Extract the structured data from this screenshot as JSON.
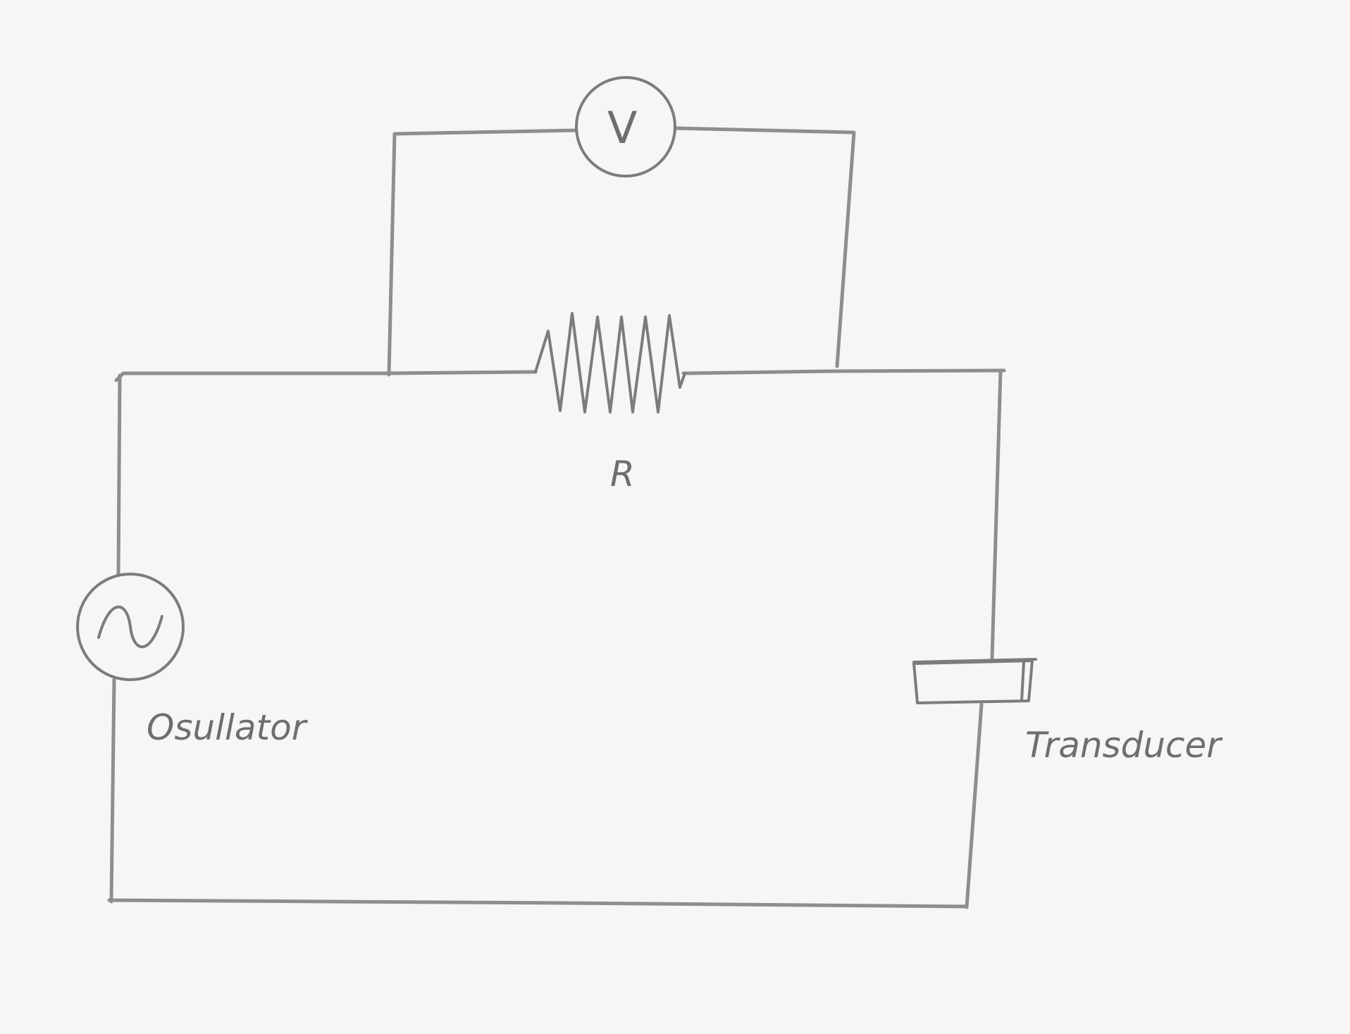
{
  "diagram": {
    "voltmeter": {
      "symbol": "V"
    },
    "resistor": {
      "label": "R"
    },
    "oscillator": {
      "label": "Osullator"
    },
    "transducer": {
      "label": "Transducer"
    },
    "colors": {
      "paper": "#f7f6f4",
      "pencil": "#8e8e8e"
    }
  }
}
